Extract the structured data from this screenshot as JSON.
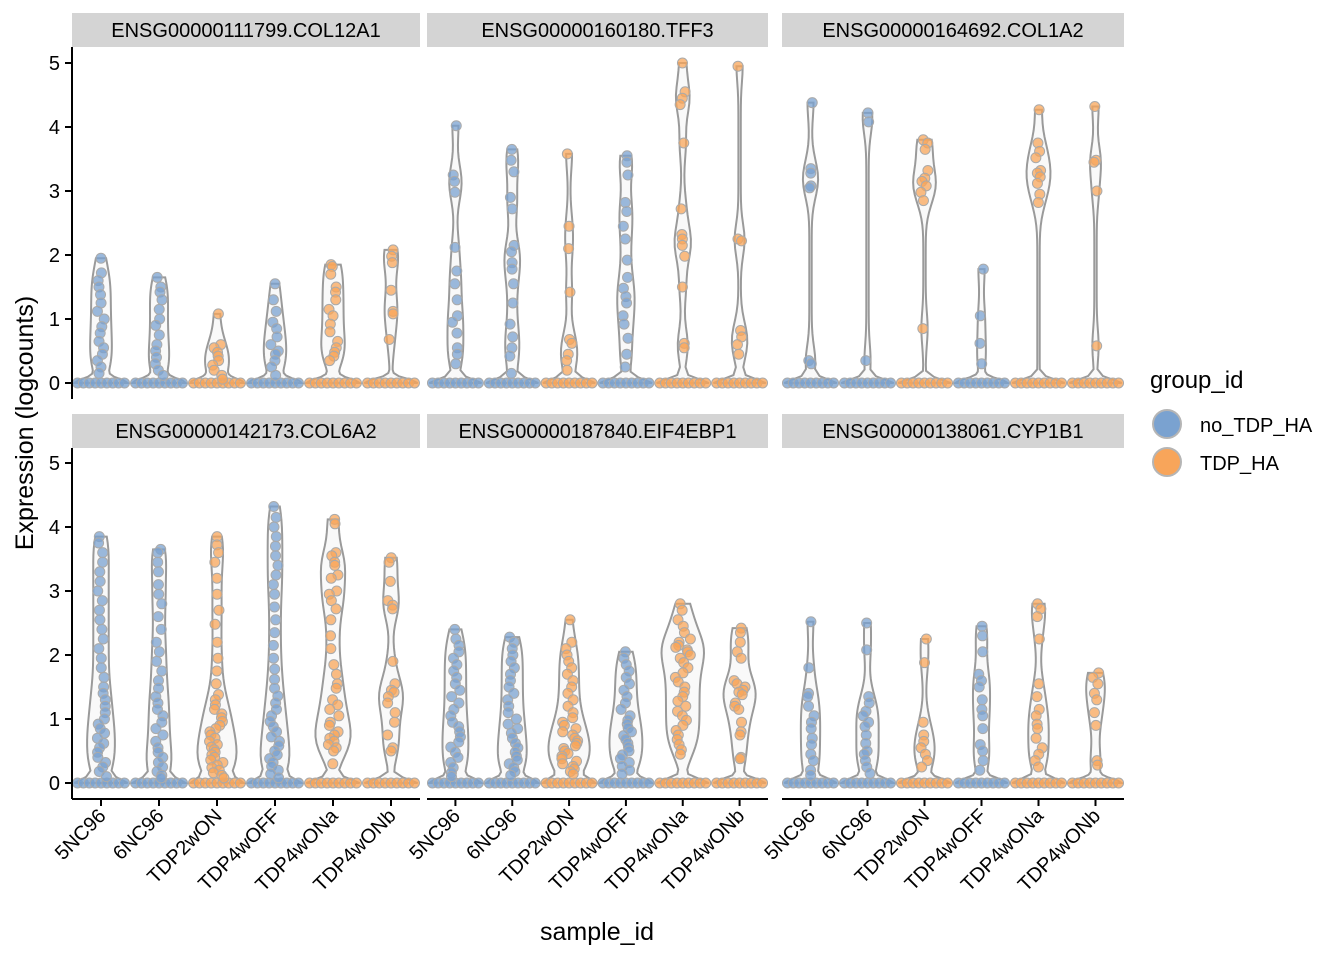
{
  "chart_data": {
    "type": "violin",
    "xlabel": "sample_id",
    "ylabel": "Expression (logcounts)",
    "ylim": [
      0,
      5.3
    ],
    "yticks": [
      0,
      1,
      2,
      3,
      4,
      5
    ],
    "categories": [
      "5NC96",
      "6NC96",
      "TDP2wON",
      "TDP4wOFF",
      "TDP4wONa",
      "TDP4wONb"
    ],
    "category_groups": [
      "no_TDP_HA",
      "no_TDP_HA",
      "TDP_HA",
      "no_TDP_HA",
      "TDP_HA",
      "TDP_HA"
    ],
    "legend": {
      "title": "group_id",
      "position": "right",
      "entries": [
        {
          "name": "no_TDP_HA",
          "color": "#7aa2d0"
        },
        {
          "name": "TDP_HA",
          "color": "#f8a55a"
        }
      ]
    },
    "panels": [
      {
        "title": "ENSG00000111799.COL12A1",
        "max": [
          1.95,
          1.65,
          1.08,
          1.55,
          1.85,
          2.08
        ],
        "points": [
          [
            1.95,
            1.72,
            1.6,
            1.5,
            1.38,
            1.25,
            1.12,
            1.0,
            0.88,
            0.78,
            0.65,
            0.55,
            0.45,
            0.35,
            0.25,
            0.15
          ],
          [
            1.65,
            1.5,
            1.42,
            1.3,
            1.15,
            1.0,
            0.9,
            0.75,
            0.6,
            0.5,
            0.4,
            0.3,
            0.2,
            0.12
          ],
          [
            1.08,
            0.6,
            0.55,
            0.48,
            0.42,
            0.35,
            0.28,
            0.2,
            0.12,
            0.06
          ],
          [
            1.55,
            1.3,
            1.12,
            0.95,
            0.85,
            0.72,
            0.6,
            0.5,
            0.45,
            0.35,
            0.25,
            0.12
          ],
          [
            1.85,
            1.82,
            1.7,
            1.5,
            1.42,
            1.3,
            1.15,
            1.05,
            0.92,
            0.8,
            0.65,
            0.55,
            0.48,
            0.42,
            0.35
          ],
          [
            2.08,
            1.98,
            1.88,
            1.45,
            1.12,
            1.08,
            0.68
          ]
        ]
      },
      {
        "title": "ENSG00000160180.TFF3",
        "max": [
          4.02,
          3.65,
          3.58,
          3.55,
          5.0,
          4.95
        ],
        "points": [
          [
            4.02,
            3.25,
            3.15,
            2.98,
            2.12,
            1.75,
            1.55,
            1.3,
            1.05,
            0.95,
            0.78,
            0.55,
            0.45,
            0.3
          ],
          [
            3.65,
            3.48,
            3.3,
            2.9,
            2.72,
            2.15,
            2.05,
            1.88,
            1.78,
            1.55,
            1.25,
            0.92,
            0.72,
            0.55,
            0.42,
            0.15
          ],
          [
            3.58,
            2.45,
            2.1,
            1.42,
            0.68,
            0.62,
            0.45,
            0.35,
            0.2
          ],
          [
            3.55,
            3.45,
            3.25,
            2.82,
            2.68,
            2.45,
            2.25,
            1.92,
            1.65,
            1.48,
            1.35,
            1.25,
            1.05,
            0.92,
            0.7,
            0.45,
            0.25
          ],
          [
            5.0,
            4.55,
            4.45,
            4.35,
            3.75,
            2.72,
            2.32,
            2.25,
            2.15,
            1.98,
            1.5,
            0.62,
            0.55
          ],
          [
            4.95,
            2.25,
            2.22,
            0.82,
            0.72,
            0.6,
            0.45
          ]
        ]
      },
      {
        "title": "ENSG00000164692.COL1A2",
        "max": [
          4.38,
          4.22,
          3.8,
          1.78,
          4.27,
          4.32
        ],
        "points": [
          [
            4.38,
            3.35,
            3.28,
            3.08,
            3.05,
            0.35,
            0.3
          ],
          [
            4.22,
            4.08,
            0.35
          ],
          [
            3.8,
            3.75,
            3.65,
            3.32,
            3.2,
            3.15,
            3.08,
            2.98,
            2.85,
            0.85
          ],
          [
            1.78,
            1.05,
            0.62,
            0.3
          ],
          [
            4.27,
            3.75,
            3.62,
            3.52,
            3.32,
            3.28,
            3.22,
            3.12,
            2.95,
            2.82
          ],
          [
            4.32,
            3.48,
            3.45,
            3.0,
            0.58
          ]
        ]
      },
      {
        "title": "ENSG00000142173.COL6A2",
        "max": [
          3.85,
          3.65,
          3.85,
          4.32,
          4.12,
          3.52
        ],
        "points": [
          [
            3.85,
            3.75,
            3.6,
            3.45,
            3.3,
            3.15,
            3.0,
            2.85,
            2.7,
            2.55,
            2.4,
            2.25,
            2.1,
            1.95,
            1.8,
            1.65,
            1.5,
            1.4,
            1.3,
            1.2,
            1.1,
            1.0,
            0.92,
            0.85,
            0.78,
            0.7,
            0.62,
            0.55,
            0.48,
            0.4,
            0.32,
            0.25,
            0.18,
            0.1
          ],
          [
            3.65,
            3.6,
            3.45,
            3.3,
            3.1,
            2.95,
            2.8,
            2.6,
            2.4,
            2.2,
            2.05,
            1.9,
            1.75,
            1.6,
            1.48,
            1.35,
            1.25,
            1.15,
            1.05,
            0.95,
            0.85,
            0.75,
            0.65,
            0.55,
            0.48,
            0.4,
            0.32,
            0.25,
            0.18,
            0.12,
            0.08
          ],
          [
            3.85,
            3.72,
            3.6,
            3.45,
            3.2,
            2.95,
            2.7,
            2.48,
            2.2,
            1.95,
            1.75,
            1.55,
            1.38,
            1.3,
            1.22,
            1.15,
            1.08,
            1.02,
            0.96,
            0.9,
            0.85,
            0.8,
            0.75,
            0.7,
            0.65,
            0.6,
            0.56,
            0.52,
            0.48,
            0.44,
            0.4,
            0.36,
            0.32,
            0.28,
            0.24,
            0.2,
            0.16,
            0.12,
            0.08
          ],
          [
            4.32,
            4.15,
            4.0,
            3.85,
            3.7,
            3.55,
            3.4,
            3.25,
            3.1,
            2.95,
            2.75,
            2.55,
            2.35,
            2.15,
            1.95,
            1.78,
            1.62,
            1.48,
            1.36,
            1.25,
            1.15,
            1.05,
            0.96,
            0.88,
            0.8,
            0.72,
            0.65,
            0.58,
            0.5,
            0.44,
            0.38,
            0.32,
            0.26,
            0.2,
            0.14,
            0.08
          ],
          [
            4.12,
            4.05,
            3.6,
            3.55,
            3.45,
            3.4,
            3.25,
            3.2,
            3.0,
            2.95,
            2.85,
            2.72,
            2.55,
            2.3,
            2.1,
            1.85,
            1.7,
            1.55,
            1.48,
            1.3,
            1.22,
            1.15,
            1.05,
            0.95,
            0.9,
            0.8,
            0.75,
            0.7,
            0.65,
            0.6,
            0.55,
            0.5,
            0.3
          ],
          [
            3.52,
            3.45,
            3.15,
            2.85,
            2.78,
            2.72,
            1.9,
            1.55,
            1.45,
            1.42,
            1.35,
            1.25,
            1.1,
            0.95,
            0.75,
            0.55,
            0.5
          ]
        ]
      },
      {
        "title": "ENSG00000187840.EIF4EBP1",
        "max": [
          2.4,
          2.28,
          2.55,
          2.05,
          2.8,
          2.42
        ],
        "points": [
          [
            2.4,
            2.25,
            2.15,
            2.05,
            1.95,
            1.85,
            1.75,
            1.65,
            1.55,
            1.45,
            1.35,
            1.25,
            1.15,
            1.05,
            0.95,
            0.88,
            0.8,
            0.72,
            0.64,
            0.56,
            0.48,
            0.4,
            0.32,
            0.24,
            0.16,
            0.1
          ],
          [
            2.28,
            2.2,
            2.1,
            2.0,
            1.9,
            1.8,
            1.7,
            1.6,
            1.5,
            1.4,
            1.3,
            1.2,
            1.1,
            1.0,
            0.92,
            0.85,
            0.78,
            0.7,
            0.62,
            0.55,
            0.48,
            0.42,
            0.36,
            0.3,
            0.24,
            0.18,
            0.12
          ],
          [
            2.55,
            2.2,
            2.1,
            2.0,
            1.9,
            1.8,
            1.7,
            1.6,
            1.5,
            1.4,
            1.3,
            1.2,
            1.1,
            1.02,
            0.95,
            0.9,
            0.85,
            0.8,
            0.75,
            0.7,
            0.66,
            0.62,
            0.58,
            0.54,
            0.5,
            0.46,
            0.42,
            0.38,
            0.34,
            0.3,
            0.26,
            0.22,
            0.18,
            0.14
          ],
          [
            2.05,
            1.95,
            1.85,
            1.75,
            1.65,
            1.55,
            1.45,
            1.35,
            1.25,
            1.15,
            1.05,
            0.98,
            0.92,
            0.86,
            0.8,
            0.74,
            0.68,
            0.62,
            0.56,
            0.5,
            0.44,
            0.38,
            0.32,
            0.26,
            0.2,
            0.14
          ],
          [
            2.8,
            2.7,
            2.55,
            2.45,
            2.35,
            2.25,
            2.2,
            2.15,
            2.12,
            2.08,
            2.05,
            2.0,
            1.95,
            1.88,
            1.8,
            1.72,
            1.65,
            1.58,
            1.5,
            1.42,
            1.35,
            1.28,
            1.2,
            1.12,
            1.05,
            0.98,
            0.9,
            0.82,
            0.75,
            0.68,
            0.6,
            0.52,
            0.45
          ],
          [
            2.42,
            2.35,
            2.2,
            2.05,
            1.95,
            1.6,
            1.55,
            1.5,
            1.45,
            1.42,
            1.38,
            1.25,
            1.2,
            1.15,
            0.95,
            0.8,
            0.75,
            0.4,
            0.38
          ]
        ]
      },
      {
        "title": "ENSG00000138061.CYP1B1",
        "max": [
          2.52,
          2.5,
          2.25,
          2.45,
          2.8,
          1.72
        ],
        "points": [
          [
            2.52,
            1.8,
            1.4,
            1.35,
            1.2,
            1.05,
            0.95,
            0.85,
            0.7,
            0.6,
            0.45,
            0.35,
            0.2,
            0.12
          ],
          [
            2.5,
            2.08,
            1.35,
            1.25,
            1.12,
            1.05,
            0.95,
            0.88,
            0.75,
            0.62,
            0.5,
            0.45,
            0.35,
            0.25,
            0.15
          ],
          [
            2.25,
            1.88,
            0.95,
            0.75,
            0.65,
            0.55,
            0.45,
            0.35,
            0.25
          ],
          [
            2.45,
            2.3,
            2.05,
            1.7,
            1.6,
            1.5,
            1.3,
            1.15,
            1.05,
            0.85,
            0.6,
            0.5,
            0.35,
            0.2
          ],
          [
            2.8,
            2.72,
            2.6,
            2.25,
            1.55,
            1.35,
            1.15,
            1.05,
            0.92,
            0.85,
            0.7,
            0.55,
            0.45,
            0.35,
            0.25
          ],
          [
            1.72,
            1.65,
            1.55,
            1.4,
            1.3,
            1.1,
            0.9,
            0.35,
            0.28
          ]
        ]
      }
    ]
  }
}
